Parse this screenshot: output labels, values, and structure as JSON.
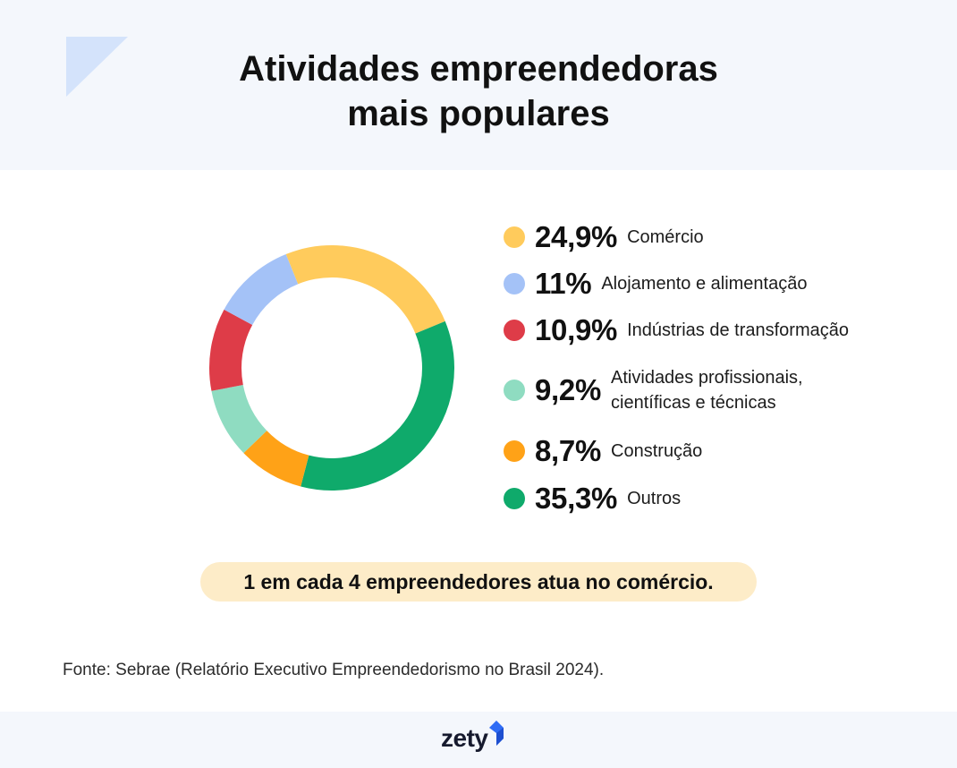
{
  "header": {
    "title_line1": "Atividades empreendedoras",
    "title_line2": "mais populares"
  },
  "chart_data": {
    "type": "pie",
    "title": "Atividades empreendedoras mais populares",
    "unit": "%",
    "slices": [
      {
        "value": 24.9,
        "value_label": "24,9%",
        "label": "Comércio",
        "color": "#ffcb5c"
      },
      {
        "value": 11,
        "value_label": "11%",
        "label": "Alojamento e alimentação",
        "color": "#a4c2f7"
      },
      {
        "value": 10.9,
        "value_label": "10,9%",
        "label": "Indústrias de transformação",
        "color": "#de3c48"
      },
      {
        "value": 9.2,
        "value_label": "9,2%",
        "label": "Atividades profissionais, científicas e técnicas",
        "color": "#8fdcc1"
      },
      {
        "value": 8.7,
        "value_label": "8,7%",
        "label": "Construção",
        "color": "#ffa217"
      },
      {
        "value": 35.3,
        "value_label": "35,3%",
        "label": "Outros",
        "color": "#0faa6b"
      }
    ],
    "donut_order_clockwise_from_top": [
      "Comércio",
      "Outros",
      "Construção",
      "Atividades profissionais, científicas e técnicas",
      "Indústrias de transformação",
      "Alojamento e alimentação"
    ]
  },
  "callout": {
    "text": "1 em cada 4 empreendedores atua no comércio."
  },
  "source": {
    "text": "Fonte: Sebrae (Relatório Executivo Empreendedorismo no Brasil 2024)."
  },
  "footer": {
    "logo_text": "zety"
  },
  "colors": {
    "header_bg": "#f4f7fc",
    "callout_bg": "#fdecc8",
    "logo_accent": "#2f6cf5",
    "corner_shape": "#d4e3fb"
  }
}
